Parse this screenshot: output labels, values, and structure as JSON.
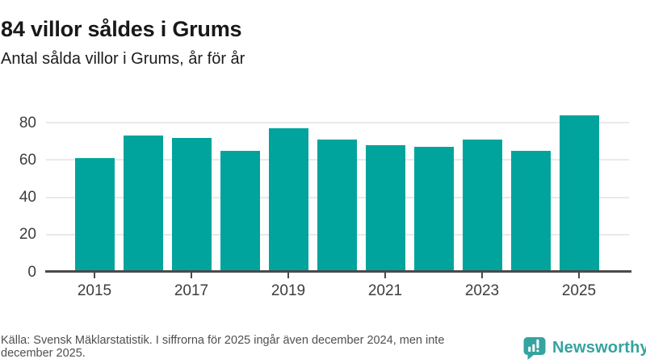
{
  "header": {
    "title": "84 villor såldes i Grums",
    "subtitle": "Antal sålda villor i Grums, år för år"
  },
  "chart_data": {
    "type": "bar",
    "title": "84 villor såldes i Grums",
    "subtitle": "Antal sålda villor i Grums, år för år",
    "categories": [
      "2015",
      "2016",
      "2017",
      "2018",
      "2019",
      "2020",
      "2021",
      "2022",
      "2023",
      "2024",
      "2025"
    ],
    "values": [
      61,
      73,
      72,
      65,
      77,
      71,
      68,
      67,
      71,
      65,
      84
    ],
    "series_name": "Antal sålda villor",
    "xlabel": "",
    "ylabel": "",
    "ylim": [
      0,
      85
    ],
    "y_ticks": [
      0,
      20,
      40,
      60,
      80
    ],
    "x_tick_labels": [
      "2015",
      "2017",
      "2019",
      "2021",
      "2023",
      "2025"
    ],
    "grid": "horizontal",
    "legend": "none",
    "bar_color": "#00a49c"
  },
  "footer": {
    "source_note": "Källa: Svensk Mäklarstatistik. I siffrorna för 2025 ingår även december 2024, men inte december 2025."
  },
  "branding": {
    "name": "Newsworthy",
    "color": "#35a3a0"
  },
  "colors": {
    "bar": "#00a49c",
    "axis": "#4a4a4a",
    "gridline": "#e9e9e9",
    "title_text": "#181818",
    "footer_text": "#4f4f4f"
  }
}
